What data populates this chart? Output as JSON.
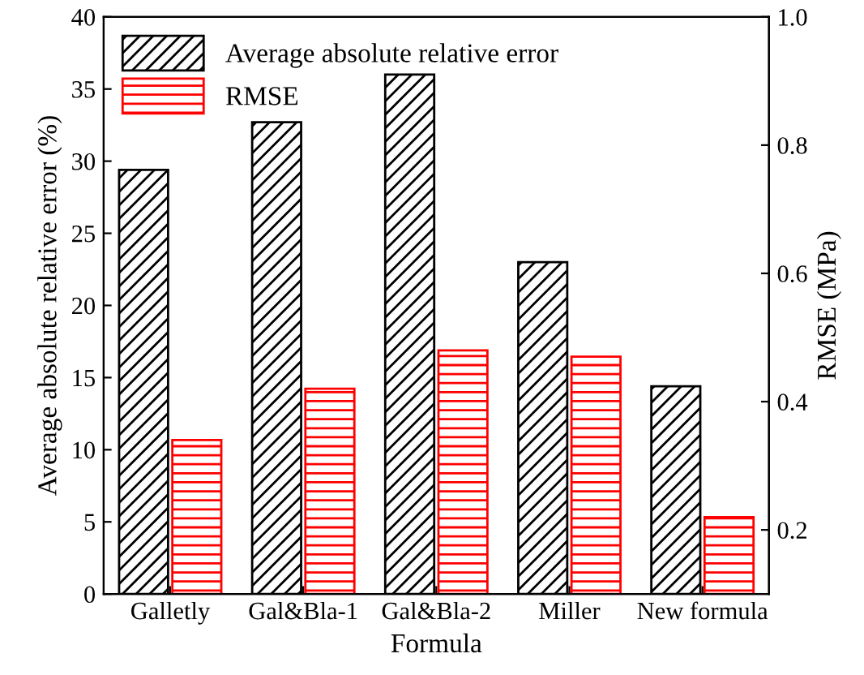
{
  "chart_data": {
    "type": "bar",
    "xlabel": "Formula",
    "ylabel": "Average absolute relative error (%)",
    "y2label": "RMSE (MPa)",
    "categories": [
      "Galletly",
      "Gal&Bla-1",
      "Gal&Bla-2",
      "Miller",
      "New formula"
    ],
    "series": [
      {
        "name": "Average absolute relative error",
        "color": "#000000",
        "values": [
          29.4,
          32.7,
          36.0,
          23.0,
          14.4
        ]
      },
      {
        "name": "RMSE",
        "color": "#ff0000",
        "axis": "y2",
        "values": [
          0.34,
          0.42,
          0.48,
          0.47,
          0.22
        ]
      }
    ],
    "ylim": [
      0,
      40
    ],
    "yticks": [
      0,
      5,
      10,
      15,
      20,
      25,
      30,
      35,
      40
    ],
    "y2lim": [
      0.1,
      1.0
    ],
    "y2ticks": [
      0.2,
      0.4,
      0.6,
      0.8,
      {
        "value": 1,
        "label": "1.0"
      }
    ],
    "legend": "top left",
    "grid": false
  }
}
